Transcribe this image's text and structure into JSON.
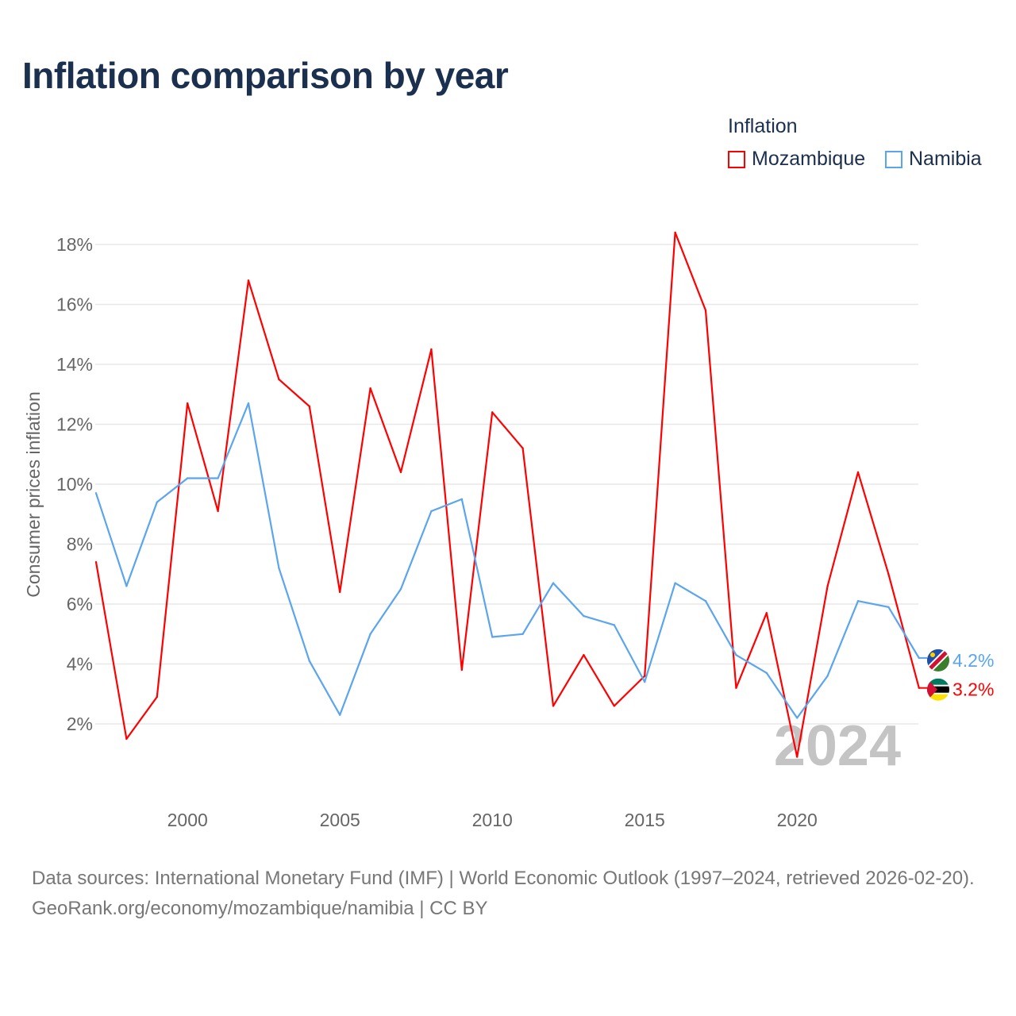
{
  "title": "Inflation comparison by year",
  "legend": {
    "title": "Inflation",
    "items": [
      {
        "label": "Mozambique",
        "color": "#ff0000"
      },
      {
        "label": "Namibia",
        "color": "#5aa5ee"
      }
    ]
  },
  "footer": {
    "line1": "Data sources: International Monetary Fund (IMF) | World Economic Outlook (1997–2024, retrieved 2026-02-20).",
    "line2": "GeoRank.org/economy/mozambique/namibia | CC BY"
  },
  "chart_data": {
    "type": "line",
    "title": "Inflation comparison by year",
    "ylabel": "Consumer prices inflation",
    "xlabel": "",
    "x": [
      1997,
      1998,
      1999,
      2000,
      2001,
      2002,
      2003,
      2004,
      2005,
      2006,
      2007,
      2008,
      2009,
      2010,
      2011,
      2012,
      2013,
      2014,
      2015,
      2016,
      2017,
      2018,
      2019,
      2020,
      2021,
      2022,
      2023,
      2024
    ],
    "xlim": [
      1997,
      2024
    ],
    "ylim": [
      0,
      18.4
    ],
    "x_ticks": [
      2000,
      2005,
      2010,
      2015,
      2020
    ],
    "y_ticks": [
      2,
      4,
      6,
      8,
      10,
      12,
      14,
      16,
      18
    ],
    "y_tick_labels": [
      "2%",
      "4%",
      "6%",
      "8%",
      "10%",
      "12%",
      "14%",
      "16%",
      "18%"
    ],
    "grid": true,
    "legend_position": "top-right",
    "year_watermark": "2024",
    "series": [
      {
        "name": "Mozambique",
        "color": "#ff0000",
        "end_label": "3.2%",
        "values": [
          7.4,
          1.5,
          2.9,
          12.7,
          9.1,
          16.8,
          13.5,
          12.6,
          6.4,
          13.2,
          10.4,
          14.5,
          3.8,
          12.4,
          11.2,
          2.6,
          4.3,
          2.6,
          3.6,
          18.4,
          15.8,
          3.2,
          5.7,
          0.9,
          6.6,
          10.4,
          7.0,
          3.2
        ]
      },
      {
        "name": "Namibia",
        "color": "#5aa5ee",
        "end_label": "4.2%",
        "values": [
          9.7,
          6.6,
          9.4,
          10.2,
          10.2,
          12.7,
          7.2,
          4.1,
          2.3,
          5.0,
          6.5,
          9.1,
          9.5,
          4.9,
          5.0,
          6.7,
          5.6,
          5.3,
          3.4,
          6.7,
          6.1,
          4.3,
          3.7,
          2.2,
          3.6,
          6.1,
          5.9,
          4.2
        ]
      }
    ]
  }
}
